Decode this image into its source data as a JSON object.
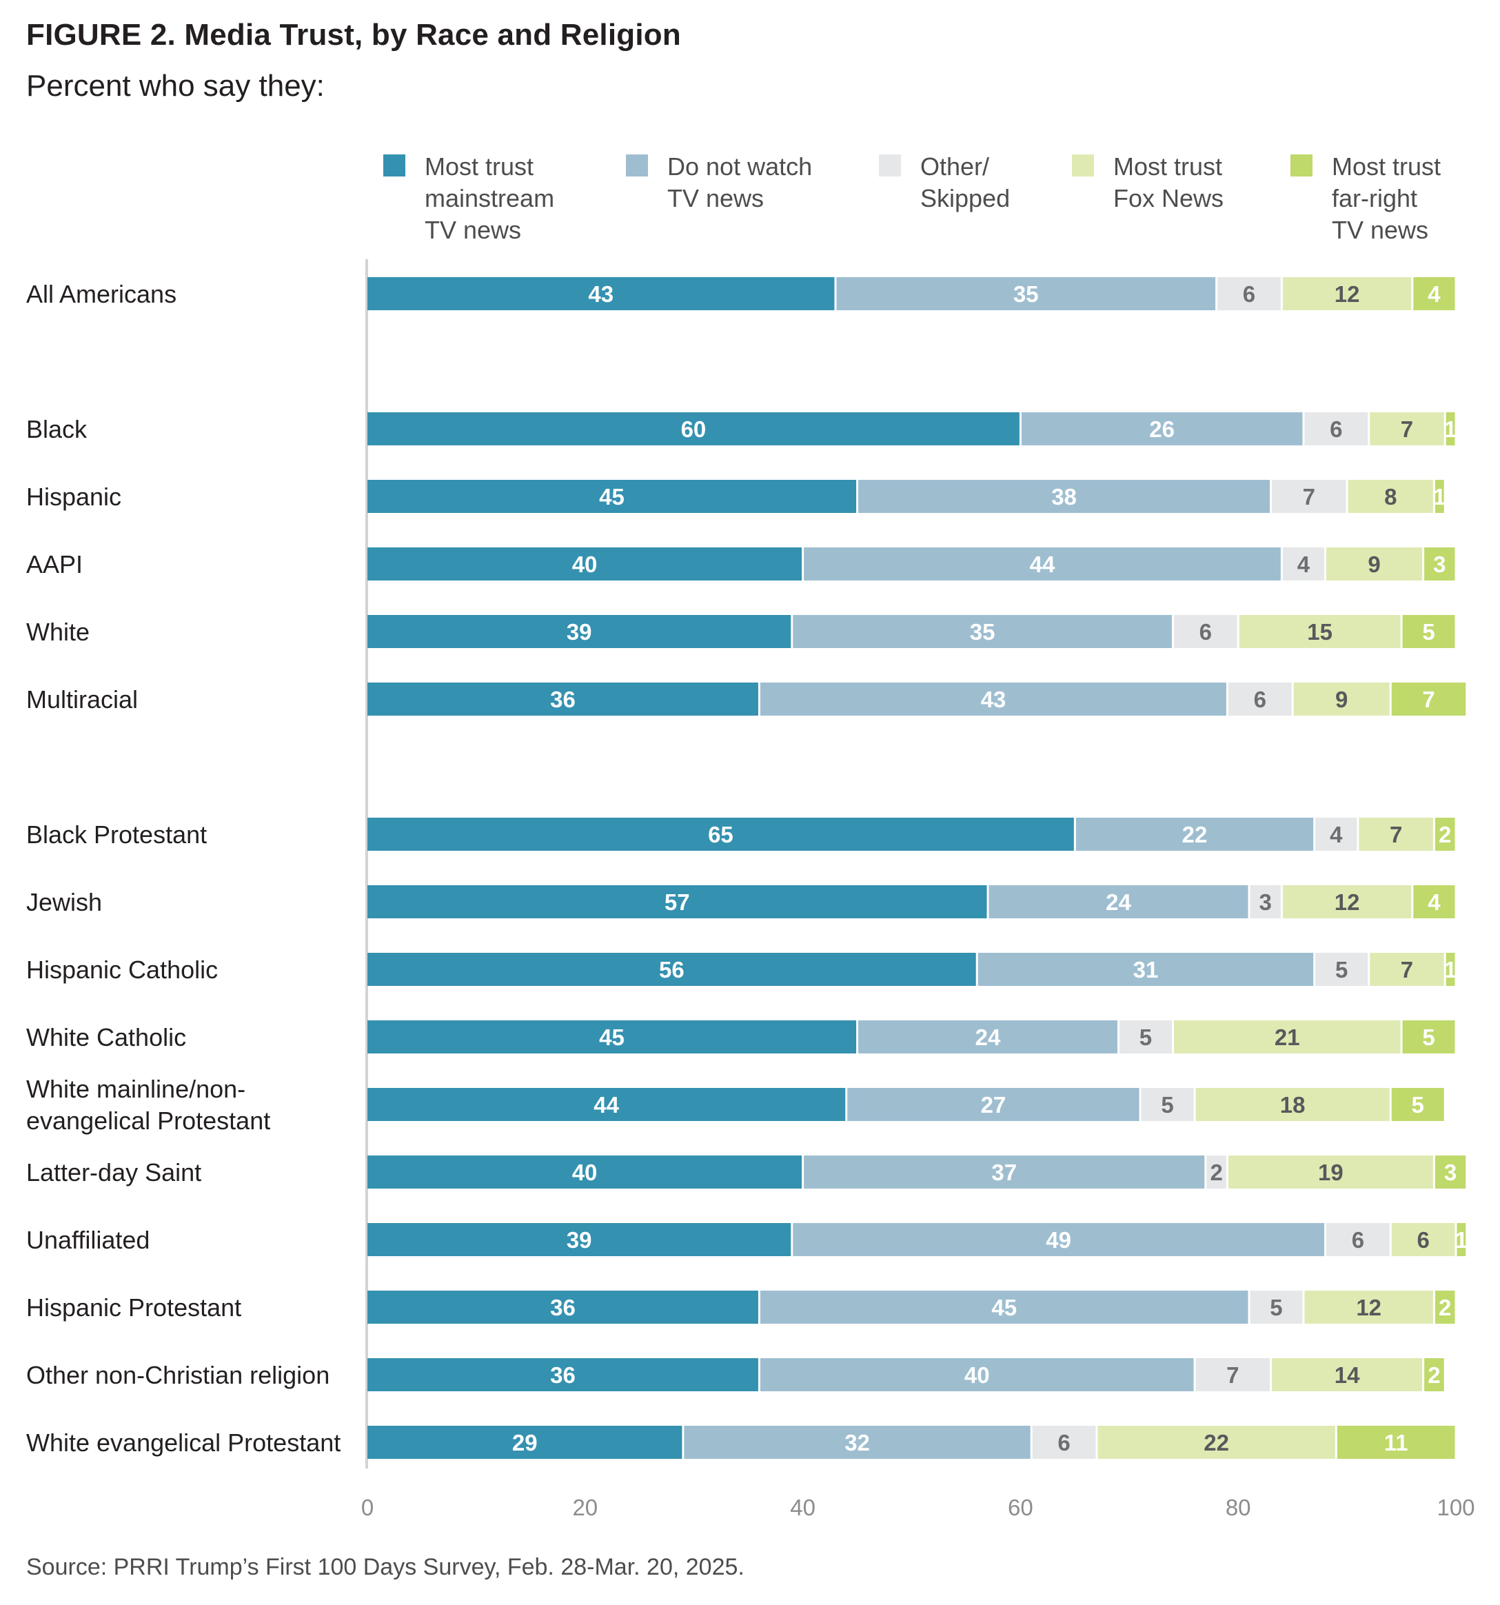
{
  "title": "FIGURE 2.  Media Trust, by Race and Religion",
  "subtitle": "Percent who say they:",
  "source": "Source: PRRI Trump’s First 100 Days Survey, Feb. 28-Mar. 20, 2025.",
  "chart_data": {
    "type": "bar",
    "orientation": "horizontal-stacked",
    "xlim": [
      0,
      100
    ],
    "x_ticks": [
      "0",
      "20",
      "40",
      "60",
      "80",
      "100"
    ],
    "legend_placement": "top",
    "grid": false,
    "series": [
      {
        "name": "Most trust mainstream TV news",
        "legend_lines": [
          "Most trust",
          "mainstream",
          "TV news"
        ],
        "color": "#3491b0",
        "label_color": "#ffffff"
      },
      {
        "name": "Do not watch TV news",
        "legend_lines": [
          "Do not watch",
          "TV news"
        ],
        "color": "#9ebed0",
        "label_color": "#ffffff"
      },
      {
        "name": "Other/ Skipped",
        "legend_lines": [
          "Other/",
          "Skipped"
        ],
        "color": "#e6e7e8",
        "label_color": "#6d6e71"
      },
      {
        "name": "Most trust Fox News",
        "legend_lines": [
          "Most trust",
          "Fox News"
        ],
        "color": "#dfeab3",
        "label_color": "#58595b"
      },
      {
        "name": "Most trust far-right TV news",
        "legend_lines": [
          "Most trust",
          "far-right",
          "TV news"
        ],
        "color": "#bfd96a",
        "label_color": "#ffffff"
      }
    ],
    "groups": [
      {
        "rows": [
          {
            "label": [
              "All Americans"
            ],
            "values": [
              43,
              35,
              6,
              12,
              4
            ]
          }
        ]
      },
      {
        "rows": [
          {
            "label": [
              "Black"
            ],
            "values": [
              60,
              26,
              6,
              7,
              1
            ]
          },
          {
            "label": [
              "Hispanic"
            ],
            "values": [
              45,
              38,
              7,
              8,
              1
            ]
          },
          {
            "label": [
              "AAPI"
            ],
            "values": [
              40,
              44,
              4,
              9,
              3
            ]
          },
          {
            "label": [
              "White"
            ],
            "values": [
              39,
              35,
              6,
              15,
              5
            ]
          },
          {
            "label": [
              "Multiracial"
            ],
            "values": [
              36,
              43,
              6,
              9,
              7
            ]
          }
        ]
      },
      {
        "rows": [
          {
            "label": [
              "Black Protestant"
            ],
            "values": [
              65,
              22,
              4,
              7,
              2
            ]
          },
          {
            "label": [
              "Jewish"
            ],
            "values": [
              57,
              24,
              3,
              12,
              4
            ]
          },
          {
            "label": [
              "Hispanic Catholic"
            ],
            "values": [
              56,
              31,
              5,
              7,
              1
            ]
          },
          {
            "label": [
              "White Catholic"
            ],
            "values": [
              45,
              24,
              5,
              21,
              5
            ]
          },
          {
            "label": [
              "White mainline/non-",
              "evangelical Protestant"
            ],
            "values": [
              44,
              27,
              5,
              18,
              5
            ]
          },
          {
            "label": [
              "Latter-day Saint"
            ],
            "values": [
              40,
              37,
              2,
              19,
              3
            ]
          },
          {
            "label": [
              "Unaffiliated"
            ],
            "values": [
              39,
              49,
              6,
              6,
              1
            ]
          },
          {
            "label": [
              "Hispanic Protestant"
            ],
            "values": [
              36,
              45,
              5,
              12,
              2
            ]
          },
          {
            "label": [
              "Other non-Christian religion"
            ],
            "values": [
              36,
              40,
              7,
              14,
              2
            ]
          },
          {
            "label": [
              "White evangelical Protestant"
            ],
            "values": [
              29,
              32,
              6,
              22,
              11
            ]
          }
        ]
      }
    ]
  }
}
